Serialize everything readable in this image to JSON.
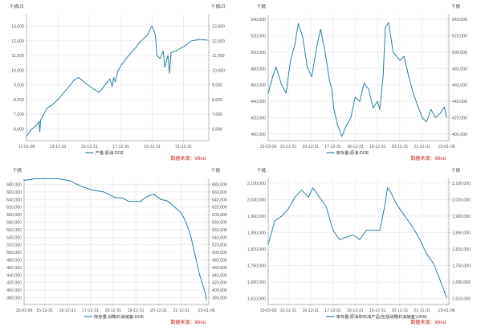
{
  "colors": {
    "line": "#2f7f9f",
    "grid": "#e6e6e6",
    "axis": "#9a9a9a",
    "tick_text": "#555555",
    "source_text": "#d02020",
    "legend_text": "#333333"
  },
  "chart_data": [
    {
      "id": "production",
      "type": "line",
      "units_left": "千桶/日",
      "units_right": "千桶/日",
      "y_ticks": [
        6000,
        7000,
        8000,
        9000,
        10000,
        11000,
        12000,
        13000
      ],
      "y_tick_labels": [
        "6,000",
        "7,000",
        "8,000",
        "9,000",
        "10,000",
        "11,000",
        "12,000",
        "13,000"
      ],
      "y_range": [
        5200,
        13800
      ],
      "x_range": [
        2012.0,
        2023.6
      ],
      "x_ticks": [
        2012.0,
        2014.0,
        2016.0,
        2018.0,
        2020.0,
        2022.0
      ],
      "x_tick_labels": [
        "12-01-06",
        "13-12-31",
        "15-12-31",
        "17-12-31",
        "19-12-31",
        "21-12-31"
      ],
      "grid": true,
      "legend_placement": "bottom-center",
      "series": [
        {
          "name": "产量:原油:DOE",
          "x": [
            2012.0,
            2012.3,
            2012.6,
            2012.8,
            2012.85,
            2012.9,
            2013.0,
            2013.3,
            2013.6,
            2014.0,
            2014.4,
            2014.8,
            2015.0,
            2015.3,
            2015.5,
            2015.9,
            2016.3,
            2016.6,
            2016.8,
            2017.0,
            2017.3,
            2017.45,
            2017.55,
            2017.65,
            2017.8,
            2018.0,
            2018.5,
            2019.0,
            2019.2,
            2019.5,
            2019.7,
            2019.8,
            2019.9,
            2020.0,
            2020.2,
            2020.3,
            2020.5,
            2020.7,
            2020.8,
            2021.0,
            2021.1,
            2021.2,
            2021.5,
            2021.8,
            2022.0,
            2022.5,
            2023.0,
            2023.5
          ],
          "values": [
            5500,
            5950,
            6200,
            6500,
            5800,
            6600,
            6800,
            7400,
            7600,
            8000,
            8500,
            9000,
            9300,
            9500,
            9350,
            9000,
            8700,
            8500,
            8700,
            9000,
            9400,
            8900,
            9500,
            9200,
            9900,
            10300,
            11000,
            11600,
            11900,
            12200,
            12400,
            12600,
            12900,
            13000,
            12400,
            11000,
            10800,
            11300,
            10200,
            11000,
            9800,
            11200,
            11300,
            11500,
            11600,
            12000,
            12100,
            12050
          ]
        }
      ],
      "source": "数据来源：Wind"
    },
    {
      "id": "commercial_stocks",
      "type": "line",
      "units_left": "千桶",
      "units_right": "千桶",
      "y_ticks": [
        400000,
        420000,
        440000,
        460000,
        480000,
        500000,
        520000,
        540000
      ],
      "y_tick_labels": [
        "400,000",
        "420,000",
        "440,000",
        "460,000",
        "480,000",
        "500,000",
        "520,000",
        "540,000"
      ],
      "y_range": [
        392000,
        546000
      ],
      "x_range": [
        2015.0,
        2023.1
      ],
      "x_ticks": [
        2015.0,
        2015.9,
        2016.9,
        2017.9,
        2018.9,
        2019.9,
        2020.9,
        2021.9,
        2023.0
      ],
      "x_tick_labels": [
        "15-03-06",
        "15-12-31",
        "16-12-31",
        "17-12-31",
        "18-12-31",
        "19-12-31",
        "20-12-31",
        "21-12-31",
        "23-01-06"
      ],
      "grid": true,
      "legend_placement": "bottom-center",
      "series": [
        {
          "name": "库存量:原油:DOE",
          "x": [
            2015.0,
            2015.2,
            2015.35,
            2015.6,
            2015.8,
            2016.0,
            2016.2,
            2016.35,
            2016.55,
            2016.75,
            2016.95,
            2017.2,
            2017.35,
            2017.55,
            2017.75,
            2017.85,
            2017.95,
            2018.1,
            2018.3,
            2018.5,
            2018.7,
            2018.9,
            2019.1,
            2019.3,
            2019.5,
            2019.7,
            2019.9,
            2020.0,
            2020.15,
            2020.25,
            2020.4,
            2020.6,
            2020.9,
            2021.1,
            2021.3,
            2021.5,
            2021.7,
            2021.9,
            2022.1,
            2022.3,
            2022.5,
            2022.7,
            2022.9,
            2023.0
          ],
          "values": [
            450000,
            470000,
            482000,
            460000,
            450000,
            490000,
            510000,
            535000,
            518000,
            482000,
            470000,
            510000,
            528000,
            500000,
            465000,
            455000,
            430000,
            412000,
            397000,
            410000,
            420000,
            445000,
            440000,
            462000,
            455000,
            432000,
            440000,
            430000,
            470000,
            530000,
            536000,
            500000,
            490000,
            495000,
            470000,
            450000,
            435000,
            420000,
            415000,
            430000,
            420000,
            425000,
            433000,
            420000
          ]
        }
      ],
      "source": "数据来源：Wind"
    },
    {
      "id": "spr",
      "type": "line",
      "units_left": "千桶",
      "units_right": "千桶",
      "y_ticks": [
        380000,
        400000,
        420000,
        440000,
        460000,
        480000,
        500000,
        520000,
        540000,
        560000,
        580000,
        600000,
        620000,
        640000,
        660000,
        680000
      ],
      "y_tick_labels": [
        "380,000",
        "400,000",
        "420,000",
        "440,000",
        "460,000",
        "480,000",
        "500,000",
        "520,000",
        "540,000",
        "560,000",
        "580,000",
        "600,000",
        "620,000",
        "640,000",
        "660,000",
        "680,000"
      ],
      "y_range": [
        362000,
        696000
      ],
      "x_range": [
        2015.0,
        2023.1
      ],
      "x_ticks": [
        2015.0,
        2015.9,
        2016.9,
        2017.9,
        2018.9,
        2019.9,
        2020.9,
        2021.9,
        2023.0
      ],
      "x_tick_labels": [
        "15-03-06",
        "15-12-31",
        "16-12-31",
        "17-12-31",
        "18-12-31",
        "19-12-31",
        "20-12-31",
        "21-12-31",
        "23-01-06"
      ],
      "grid": true,
      "legend_placement": "bottom-center",
      "series": [
        {
          "name": "库存量:战略石油储备:DOE",
          "x": [
            2015.0,
            2015.5,
            2016.0,
            2016.5,
            2017.0,
            2017.5,
            2018.0,
            2018.5,
            2019.0,
            2019.3,
            2019.6,
            2019.9,
            2020.1,
            2020.4,
            2020.7,
            2021.0,
            2021.3,
            2021.6,
            2021.9,
            2022.1,
            2022.3,
            2022.5,
            2022.7,
            2022.9,
            2023.0
          ],
          "values": [
            691000,
            695000,
            695000,
            695000,
            690000,
            675000,
            665000,
            660000,
            645000,
            644000,
            635000,
            635000,
            635000,
            648000,
            654000,
            640000,
            636000,
            620000,
            604000,
            580000,
            545000,
            492000,
            440000,
            402000,
            375000
          ]
        }
      ],
      "source": "数据来源：Wind"
    },
    {
      "id": "total_stocks",
      "type": "line",
      "units_left": "千桶",
      "units_right": "千桶",
      "y_ticks": [
        1610000,
        1680000,
        1750000,
        1820000,
        1890000,
        1960000,
        2030000,
        2100000
      ],
      "y_tick_labels": [
        "1,610,000",
        "1,680,000",
        "1,750,000",
        "1,820,000",
        "1,890,000",
        "1,960,000",
        "2,030,000",
        "2,100,000"
      ],
      "y_range": [
        1585000,
        2120000
      ],
      "x_range": [
        2015.0,
        2023.1
      ],
      "x_ticks": [
        2015.0,
        2015.9,
        2016.9,
        2017.9,
        2018.9,
        2019.9,
        2020.9,
        2021.9,
        2023.0
      ],
      "x_tick_labels": [
        "15-03-06",
        "15-12-31",
        "16-12-31",
        "17-12-31",
        "18-12-31",
        "19-12-31",
        "20-12-31",
        "21-12-31",
        "23-01-06"
      ],
      "grid": true,
      "legend_placement": "bottom-center",
      "series": [
        {
          "name": "库存量:原油和石油产品(包括战略石油储备):DOE",
          "x": [
            2015.0,
            2015.3,
            2015.6,
            2015.9,
            2016.2,
            2016.5,
            2016.8,
            2017.0,
            2017.3,
            2017.6,
            2017.9,
            2018.2,
            2018.5,
            2018.8,
            2019.1,
            2019.4,
            2019.7,
            2020.0,
            2020.2,
            2020.35,
            2020.5,
            2020.7,
            2020.9,
            2021.2,
            2021.5,
            2021.8,
            2022.1,
            2022.4,
            2022.7,
            2022.9,
            2023.0
          ],
          "values": [
            1840000,
            1940000,
            1960000,
            1990000,
            2040000,
            2070000,
            2040000,
            2080000,
            2040000,
            2000000,
            1900000,
            1860000,
            1870000,
            1880000,
            1860000,
            1900000,
            1900000,
            1900000,
            1990000,
            2080000,
            2060000,
            2020000,
            1990000,
            1950000,
            1910000,
            1860000,
            1800000,
            1760000,
            1690000,
            1640000,
            1615000
          ]
        }
      ],
      "source": "数据来源：Wind"
    }
  ]
}
